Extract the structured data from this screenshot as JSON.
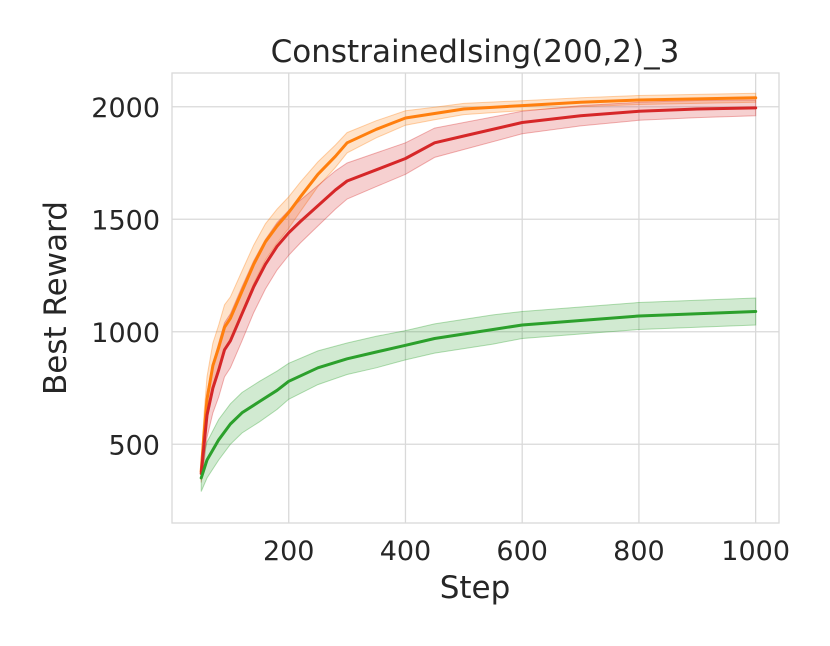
{
  "chart_data": {
    "type": "line",
    "title": "ConstrainedIsing(200,2)_3",
    "xlabel": "Step",
    "ylabel": "Best Reward",
    "xlim": [
      0,
      1040
    ],
    "ylim": [
      150,
      2150
    ],
    "xticks": [
      200,
      400,
      600,
      800,
      1000
    ],
    "yticks": [
      500,
      1000,
      1500,
      2000
    ],
    "grid": true,
    "legend": "none",
    "series": [
      {
        "color": "#ff7f0e",
        "x": [
          50,
          55,
          60,
          70,
          80,
          90,
          100,
          120,
          140,
          160,
          180,
          200,
          220,
          250,
          280,
          300,
          350,
          400,
          450,
          500,
          600,
          700,
          800,
          900,
          1000
        ],
        "y": [
          380,
          550,
          700,
          850,
          930,
          1020,
          1060,
          1180,
          1300,
          1400,
          1470,
          1530,
          1600,
          1700,
          1780,
          1840,
          1900,
          1950,
          1970,
          1990,
          2005,
          2020,
          2030,
          2035,
          2040
        ],
        "band": [
          40,
          90,
          100,
          100,
          100,
          100,
          95,
          90,
          85,
          80,
          75,
          70,
          65,
          55,
          50,
          45,
          38,
          32,
          28,
          25,
          22,
          20,
          20,
          20,
          20
        ]
      },
      {
        "color": "#d62728",
        "x": [
          50,
          55,
          60,
          70,
          80,
          90,
          100,
          120,
          140,
          160,
          180,
          200,
          220,
          250,
          280,
          300,
          350,
          400,
          450,
          500,
          600,
          700,
          800,
          900,
          1000
        ],
        "y": [
          370,
          500,
          630,
          750,
          830,
          920,
          960,
          1080,
          1200,
          1300,
          1380,
          1440,
          1490,
          1560,
          1630,
          1670,
          1720,
          1770,
          1840,
          1870,
          1930,
          1960,
          1980,
          1990,
          1995
        ],
        "band": [
          40,
          80,
          100,
          110,
          120,
          120,
          120,
          120,
          115,
          110,
          105,
          100,
          95,
          90,
          85,
          80,
          75,
          70,
          65,
          60,
          50,
          45,
          40,
          38,
          35
        ]
      },
      {
        "color": "#2ca02c",
        "x": [
          50,
          60,
          80,
          100,
          120,
          150,
          180,
          200,
          250,
          300,
          350,
          400,
          450,
          500,
          550,
          600,
          700,
          800,
          900,
          1000
        ],
        "y": [
          350,
          430,
          520,
          590,
          640,
          690,
          740,
          780,
          840,
          880,
          910,
          940,
          970,
          990,
          1010,
          1030,
          1050,
          1070,
          1080,
          1090
        ],
        "band": [
          60,
          80,
          90,
          90,
          90,
          90,
          85,
          80,
          75,
          70,
          70,
          65,
          65,
          65,
          65,
          60,
          60,
          60,
          60,
          60
        ]
      }
    ]
  }
}
